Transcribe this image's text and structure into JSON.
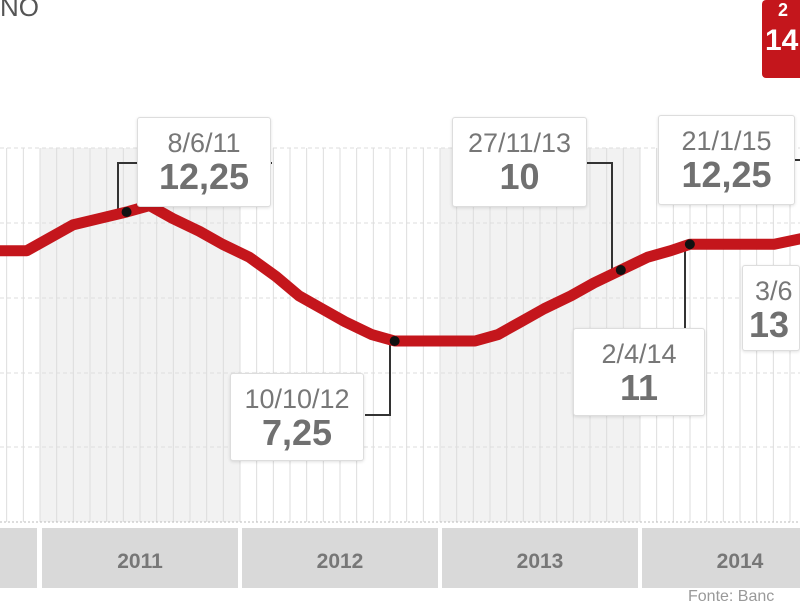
{
  "header": {
    "title_fragment": "NO"
  },
  "highlight": {
    "line1": "2",
    "line2": "14",
    "color": "#c4161c"
  },
  "source_fragment": "Fonte: Banc",
  "chart_data": {
    "type": "line",
    "x_type": "date",
    "grid": true,
    "line_color": "#c4161c",
    "shaded_years": [
      "2011",
      "2013"
    ],
    "x_tick_labels": [
      "2011",
      "2012",
      "2013",
      "2014"
    ],
    "series": [
      {
        "values": [
          [
            "2010-10-01",
            10.75
          ],
          [
            "2010-12-08",
            10.75
          ],
          [
            "2011-01-19",
            11.25
          ],
          [
            "2011-03-02",
            11.75
          ],
          [
            "2011-04-20",
            12.0
          ],
          [
            "2011-06-08",
            12.25
          ],
          [
            "2011-07-20",
            12.5
          ],
          [
            "2011-08-31",
            12.0
          ],
          [
            "2011-10-19",
            11.5
          ],
          [
            "2011-11-30",
            11.0
          ],
          [
            "2012-01-18",
            10.5
          ],
          [
            "2012-03-07",
            9.75
          ],
          [
            "2012-04-18",
            9.0
          ],
          [
            "2012-05-30",
            8.5
          ],
          [
            "2012-07-11",
            8.0
          ],
          [
            "2012-08-29",
            7.5
          ],
          [
            "2012-10-10",
            7.25
          ],
          [
            "2013-03-06",
            7.25
          ],
          [
            "2013-04-17",
            7.5
          ],
          [
            "2013-05-29",
            8.0
          ],
          [
            "2013-07-10",
            8.5
          ],
          [
            "2013-08-28",
            9.0
          ],
          [
            "2013-10-09",
            9.5
          ],
          [
            "2013-11-27",
            10.0
          ],
          [
            "2014-01-15",
            10.5
          ],
          [
            "2014-02-26",
            10.75
          ],
          [
            "2014-04-02",
            11.0
          ],
          [
            "2014-09-03",
            11.0
          ],
          [
            "2014-10-29",
            11.25
          ],
          [
            "2014-12-03",
            11.75
          ],
          [
            "2015-01-21",
            12.25
          ]
        ]
      }
    ],
    "annotations": [
      {
        "date_label": "8/6/11",
        "value_label": "12,25",
        "date": "2011-06-08",
        "value": 12.25
      },
      {
        "date_label": "10/10/12",
        "value_label": "7,25",
        "date": "2012-10-10",
        "value": 7.25
      },
      {
        "date_label": "27/11/13",
        "value_label": "10",
        "date": "2013-11-27",
        "value": 10
      },
      {
        "date_label": "2/4/14",
        "value_label": "11",
        "date": "2014-04-02",
        "value": 11
      },
      {
        "date_label": "21/1/15",
        "value_label": "12,25",
        "date": "2015-01-21",
        "value": 12.25
      },
      {
        "date_label": "3/6",
        "value_label": "13"
      }
    ]
  }
}
